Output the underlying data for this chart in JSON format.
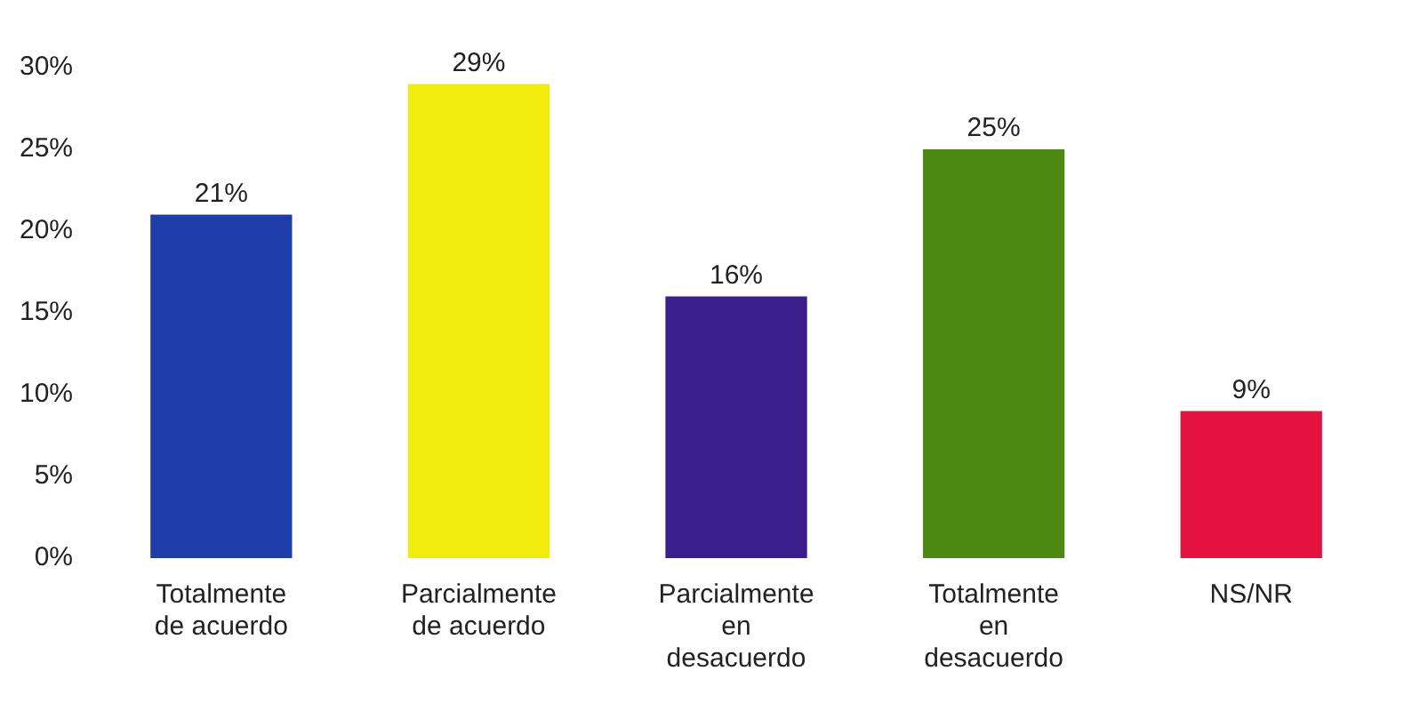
{
  "chart_data": {
    "type": "bar",
    "categories": [
      "Totalmente de acuerdo",
      "Parcialmente de acuerdo",
      "Parcialmente en desacuerdo",
      "Totalmente en desacuerdo",
      "NS/NR"
    ],
    "values": [
      21,
      29,
      16,
      25,
      9
    ],
    "colors": [
      "#1f3da6",
      "#f2ec0c",
      "#3b1d8c",
      "#4d8a12",
      "#e3123f"
    ],
    "value_labels": [
      "21%",
      "29%",
      "16%",
      "25%",
      "9%"
    ],
    "ylim": [
      0,
      30
    ],
    "yticks": [
      {
        "value": 0,
        "label": "0%"
      },
      {
        "value": 5,
        "label": "5%"
      },
      {
        "value": 10,
        "label": "10%"
      },
      {
        "value": 15,
        "label": "15%"
      },
      {
        "value": 20,
        "label": "20%"
      },
      {
        "value": 25,
        "label": "25%"
      },
      {
        "value": 30,
        "label": "30%"
      }
    ],
    "grid": false,
    "legend": false
  }
}
